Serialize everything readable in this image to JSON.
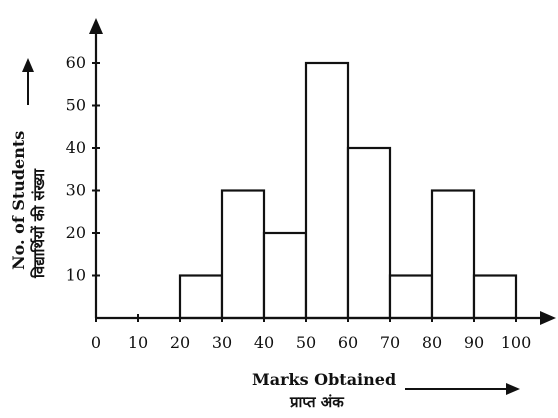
{
  "chart_data": {
    "type": "bar",
    "title": "",
    "xlabel": "Marks Obtained",
    "xlabel_hindi": "प्राप्त अंक",
    "ylabel": "No. of Students",
    "ylabel_hindi": "विद्यार्थियों की संख्या",
    "x_ticks": [
      0,
      10,
      20,
      30,
      40,
      50,
      60,
      70,
      80,
      90,
      100
    ],
    "y_ticks": [
      10,
      20,
      30,
      40,
      50,
      60
    ],
    "xlim": [
      0,
      100
    ],
    "ylim": [
      0,
      60
    ],
    "grid": false,
    "legend": "none",
    "bins": [
      {
        "start": 20,
        "end": 30,
        "value": 10
      },
      {
        "start": 30,
        "end": 40,
        "value": 30
      },
      {
        "start": 40,
        "end": 50,
        "value": 20
      },
      {
        "start": 50,
        "end": 60,
        "value": 60
      },
      {
        "start": 60,
        "end": 70,
        "value": 40
      },
      {
        "start": 70,
        "end": 80,
        "value": 10
      },
      {
        "start": 80,
        "end": 90,
        "value": 30
      },
      {
        "start": 90,
        "end": 100,
        "value": 10
      }
    ]
  },
  "colors": {
    "bar_fill": "#ffffff",
    "stroke": "#111111",
    "background": "#ffffff"
  }
}
